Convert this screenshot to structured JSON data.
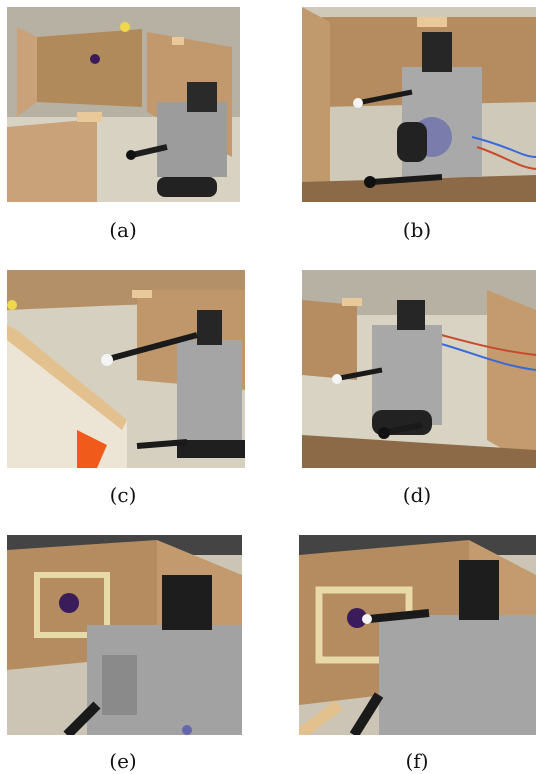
{
  "figure": {
    "panels": [
      {
        "id": "a",
        "caption": "(a)",
        "scene": "robot in maze corridor facing wall with purple target"
      },
      {
        "id": "b",
        "caption": "(b)",
        "scene": "robot with outstretched arm near wall"
      },
      {
        "id": "c",
        "caption": "(c)",
        "scene": "robot reaching arm toward wall panel"
      },
      {
        "id": "d",
        "caption": "(d)",
        "scene": "robot in corridor near cables"
      },
      {
        "id": "e",
        "caption": "(e)",
        "scene": "robot facing wall with purple target on taped square"
      },
      {
        "id": "f",
        "caption": "(f)",
        "scene": "robot arm touching purple target"
      }
    ]
  },
  "colors": {
    "wall_light": "#c9a27a",
    "wall_dark": "#8c6a48",
    "floor": "#d9d3c4",
    "robot_metal": "#b8b8b8",
    "robot_dark": "#2a2a2a",
    "target_purple": "#3b1c5a",
    "tape": "#e8d9a8",
    "edge_wood": "#e9c89a"
  }
}
